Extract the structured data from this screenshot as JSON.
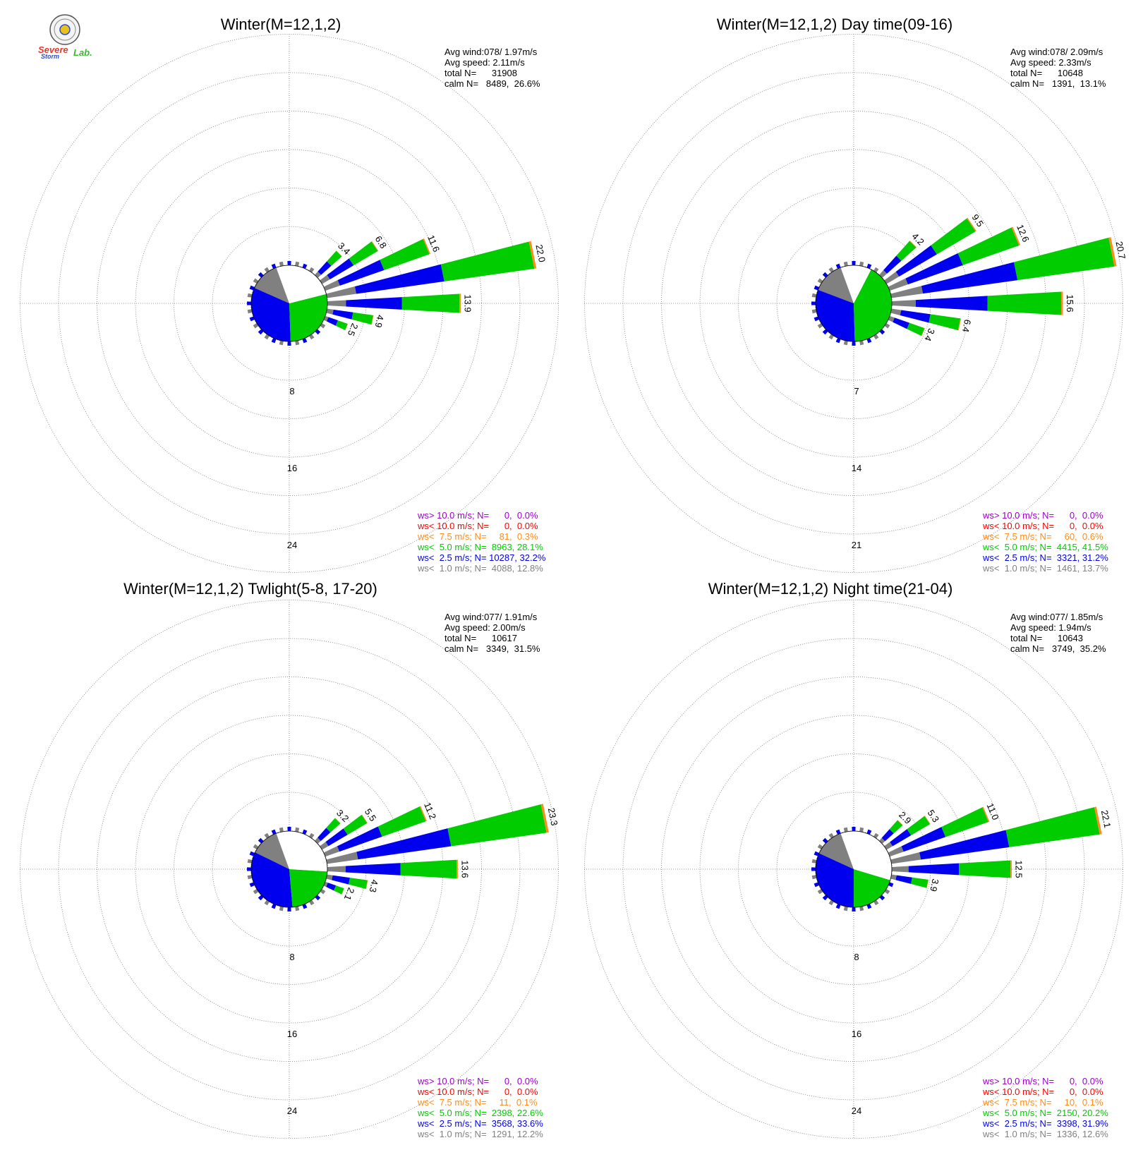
{
  "logo": {
    "word1": "Severe",
    "word2": "Storm",
    "word3": "Lab.",
    "colors": [
      "#e8392a",
      "#2a4bd8",
      "#3ab82e"
    ]
  },
  "colors": {
    "ws_gt_10": "#9a00c8",
    "ws_lt_10": "#ff0000",
    "ws_lt_7_5": "#ff8c1a",
    "ws_lt_5": "#00cc00",
    "ws_lt_2_5": "#0000ee",
    "ws_lt_1": "#808080",
    "calm_pie_calm": "#ffffff"
  },
  "chart_data": [
    {
      "type": "windrose",
      "title": "Winter(M=12,1,2)",
      "stats": [
        "Avg wind:078/ 1.97m/s",
        "Avg speed: 2.11m/s",
        "total N=      31908",
        "calm N=   8489,  26.6%"
      ],
      "rings": [
        "8",
        "16",
        "24"
      ],
      "ring_values": [
        8,
        16,
        24
      ],
      "pie": [
        12.8,
        32.2,
        28.4,
        26.6
      ],
      "bars": [
        {
          "dir": 45,
          "total": 3.4,
          "label": "3.4"
        },
        {
          "dir": 56.25,
          "total": 6.8,
          "label": "6.8"
        },
        {
          "dir": 67.5,
          "total": 11.6,
          "label": "11.6"
        },
        {
          "dir": 78.75,
          "total": 22.0,
          "label": "22.0"
        },
        {
          "dir": 90,
          "total": 13.9,
          "label": "13.9"
        },
        {
          "dir": 101.25,
          "total": 4.9,
          "label": "4.9"
        },
        {
          "dir": 112.5,
          "total": 2.5,
          "label": "2.5"
        }
      ],
      "legend": [
        {
          "key": "ws_gt_10",
          "text": "ws> 10.0 m/s; N=      0,  0.0%"
        },
        {
          "key": "ws_lt_10",
          "text": "ws< 10.0 m/s; N=      0,  0.0%"
        },
        {
          "key": "ws_lt_7_5",
          "text": "ws<  7.5 m/s; N=     81,  0.3%"
        },
        {
          "key": "ws_lt_5",
          "text": "ws<  5.0 m/s; N=  8963, 28.1%"
        },
        {
          "key": "ws_lt_2_5",
          "text": "ws<  2.5 m/s; N= 10287, 32.2%"
        },
        {
          "key": "ws_lt_1",
          "text": "ws<  1.0 m/s; N=  4088, 12.8%"
        }
      ]
    },
    {
      "type": "windrose",
      "title": "Winter(M=12,1,2) Day time(09-16)",
      "stats": [
        "Avg wind:078/ 2.09m/s",
        "Avg speed: 2.33m/s",
        "total N=      10648",
        "calm N=   1391,  13.1%"
      ],
      "rings": [
        "7",
        "14",
        "21"
      ],
      "ring_values": [
        7,
        14,
        21
      ],
      "pie": [
        13.7,
        31.2,
        42.0,
        13.1
      ],
      "bars": [
        {
          "dir": 45,
          "total": 4.2,
          "label": "4.2"
        },
        {
          "dir": 56.25,
          "total": 9.5,
          "label": "9.5"
        },
        {
          "dir": 67.5,
          "total": 12.6,
          "label": "12.6"
        },
        {
          "dir": 78.75,
          "total": 20.7,
          "label": "20.7"
        },
        {
          "dir": 90,
          "total": 15.6,
          "label": "15.6"
        },
        {
          "dir": 101.25,
          "total": 6.4,
          "label": "6.4"
        },
        {
          "dir": 112.5,
          "total": 3.4,
          "label": "3.4"
        }
      ],
      "legend": [
        {
          "key": "ws_gt_10",
          "text": "ws> 10.0 m/s; N=      0,  0.0%"
        },
        {
          "key": "ws_lt_10",
          "text": "ws< 10.0 m/s; N=      0,  0.0%"
        },
        {
          "key": "ws_lt_7_5",
          "text": "ws<  7.5 m/s; N=     60,  0.6%"
        },
        {
          "key": "ws_lt_5",
          "text": "ws<  5.0 m/s; N=  4415, 41.5%"
        },
        {
          "key": "ws_lt_2_5",
          "text": "ws<  2.5 m/s; N=  3321, 31.2%"
        },
        {
          "key": "ws_lt_1",
          "text": "ws<  1.0 m/s; N=  1461, 13.7%"
        }
      ]
    },
    {
      "type": "windrose",
      "title": "Winter(M=12,1,2) Twlight(5-8, 17-20)",
      "stats": [
        "Avg wind:077/ 1.91m/s",
        "Avg speed: 2.00m/s",
        "total N=      10617",
        "calm N=   3349,  31.5%"
      ],
      "rings": [
        "8",
        "16",
        "24"
      ],
      "ring_values": [
        8,
        16,
        24
      ],
      "pie": [
        12.2,
        33.6,
        22.7,
        31.5
      ],
      "bars": [
        {
          "dir": 45,
          "total": 3.2,
          "label": "3.2"
        },
        {
          "dir": 56.25,
          "total": 5.5,
          "label": "5.5"
        },
        {
          "dir": 67.5,
          "total": 11.2,
          "label": "11.2"
        },
        {
          "dir": 78.75,
          "total": 23.3,
          "label": "23.3"
        },
        {
          "dir": 90,
          "total": 13.6,
          "label": "13.6"
        },
        {
          "dir": 101.25,
          "total": 4.3,
          "label": "4.3"
        },
        {
          "dir": 112.5,
          "total": 2.1,
          "label": "2.1"
        }
      ],
      "legend": [
        {
          "key": "ws_gt_10",
          "text": "ws> 10.0 m/s; N=      0,  0.0%"
        },
        {
          "key": "ws_lt_10",
          "text": "ws< 10.0 m/s; N=      0,  0.0%"
        },
        {
          "key": "ws_lt_7_5",
          "text": "ws<  7.5 m/s; N=     11,  0.1%"
        },
        {
          "key": "ws_lt_5",
          "text": "ws<  5.0 m/s; N=  2398, 22.6%"
        },
        {
          "key": "ws_lt_2_5",
          "text": "ws<  2.5 m/s; N=  3568, 33.6%"
        },
        {
          "key": "ws_lt_1",
          "text": "ws<  1.0 m/s; N=  1291, 12.2%"
        }
      ]
    },
    {
      "type": "windrose",
      "title": "Winter(M=12,1,2) Night time(21-04)",
      "stats": [
        "Avg wind:077/ 1.85m/s",
        "Avg speed: 1.94m/s",
        "total N=      10643",
        "calm N=   3749,  35.2%"
      ],
      "rings": [
        "8",
        "16",
        "24"
      ],
      "ring_values": [
        8,
        16,
        24
      ],
      "pie": [
        12.6,
        31.9,
        20.3,
        35.2
      ],
      "bars": [
        {
          "dir": 45,
          "total": 2.9,
          "label": "2.9"
        },
        {
          "dir": 56.25,
          "total": 5.3,
          "label": "5.3"
        },
        {
          "dir": 67.5,
          "total": 11.0,
          "label": "11.0"
        },
        {
          "dir": 78.75,
          "total": 22.1,
          "label": "22.1"
        },
        {
          "dir": 90,
          "total": 12.5,
          "label": "12.5"
        },
        {
          "dir": 101.25,
          "total": 3.9,
          "label": "3.9"
        }
      ],
      "legend": [
        {
          "key": "ws_gt_10",
          "text": "ws> 10.0 m/s; N=      0,  0.0%"
        },
        {
          "key": "ws_lt_10",
          "text": "ws< 10.0 m/s; N=      0,  0.0%"
        },
        {
          "key": "ws_lt_7_5",
          "text": "ws<  7.5 m/s; N=     10,  0.1%"
        },
        {
          "key": "ws_lt_5",
          "text": "ws<  5.0 m/s; N=  2150, 20.2%"
        },
        {
          "key": "ws_lt_2_5",
          "text": "ws<  2.5 m/s; N=  3398, 31.9%"
        },
        {
          "key": "ws_lt_1",
          "text": "ws<  1.0 m/s; N=  1336, 12.6%"
        }
      ]
    }
  ]
}
